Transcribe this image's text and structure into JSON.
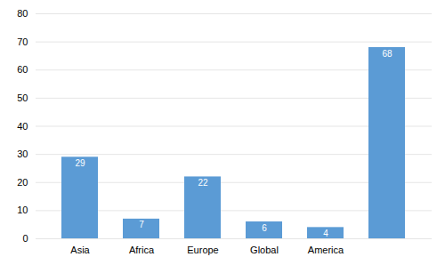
{
  "chart_data": {
    "type": "bar",
    "categories": [
      "Asia",
      "Africa",
      "Europe",
      "Global",
      "America",
      null
    ],
    "values": [
      29,
      7,
      22,
      6,
      4,
      68
    ],
    "color": "#5B9BD5",
    "ylim": [
      0,
      80
    ],
    "yticks": [
      0,
      10,
      20,
      30,
      40,
      50,
      60,
      70,
      80
    ],
    "grid": true,
    "data_labels": true
  }
}
